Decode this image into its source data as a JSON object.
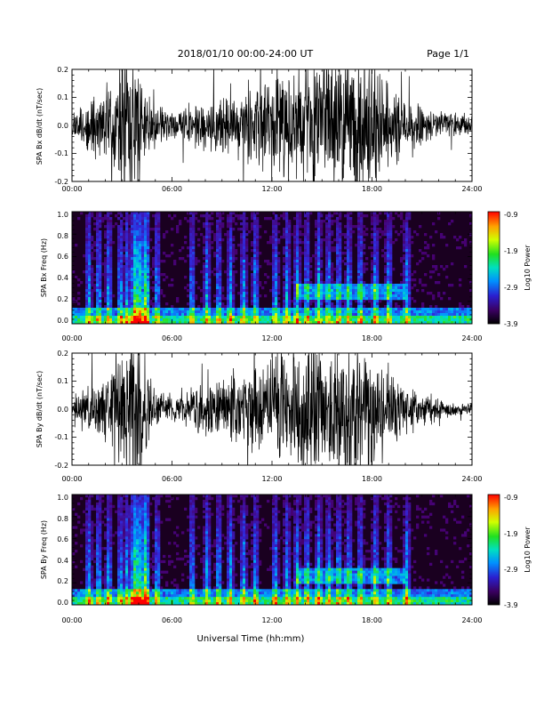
{
  "header": {
    "title": "2018/01/10  00:00-24:00 UT",
    "page": "Page 1/1"
  },
  "footer": {
    "xlabel": "Universal Time (hh:mm)"
  },
  "colors": {
    "trace": "#000000",
    "spectrogram_background": "#1a0020"
  },
  "chart_data": [
    {
      "type": "line",
      "ylabel": "SPA Bx dB/dt (nT/sec)",
      "xticks": [
        "00:00",
        "06:00",
        "12:00",
        "18:00",
        "24:00"
      ],
      "xlim_hours": [
        0,
        24
      ],
      "yticks": [
        "0.2",
        "0.1",
        "0.0",
        "-0.1",
        "-0.2"
      ],
      "ylim": [
        -0.2,
        0.2
      ],
      "series": [
        {
          "x_hours": [
            0,
            1,
            2,
            3,
            3.5,
            4,
            4.5,
            5,
            6,
            7,
            8,
            9,
            10,
            11,
            12,
            12.5,
            13,
            14,
            14.5,
            15,
            16,
            17,
            17.5,
            18,
            19,
            20,
            21,
            22,
            23,
            24
          ],
          "amplitude": [
            0.03,
            0.08,
            0.09,
            0.2,
            0.2,
            0.2,
            0.11,
            0.06,
            0.04,
            0.05,
            0.07,
            0.08,
            0.09,
            0.12,
            0.14,
            0.18,
            0.12,
            0.2,
            0.2,
            0.2,
            0.2,
            0.2,
            0.2,
            0.18,
            0.12,
            0.08,
            0.06,
            0.04,
            0.04,
            0.03
          ]
        }
      ]
    },
    {
      "type": "heatmap",
      "ylabel": "SPA Bx Freq (Hz)",
      "xticks": [
        "00:00",
        "06:00",
        "12:00",
        "18:00",
        "24:00"
      ],
      "xlim_hours": [
        0,
        24
      ],
      "yticks": [
        "1.0",
        "0.8",
        "0.6",
        "0.4",
        "0.2",
        "0.0"
      ],
      "ylim": [
        0,
        1.0
      ],
      "colorbar": {
        "label": "Log10 Power",
        "ticks": [
          "-0.9",
          "-1.9",
          "-2.9",
          "-3.9"
        ],
        "range": [
          -3.9,
          -0.9
        ]
      },
      "bursts_hours": [
        1.0,
        1.6,
        2.2,
        2.9,
        3.3,
        3.8,
        4.0,
        4.4,
        5.1,
        7.2,
        8.1,
        8.8,
        9.5,
        10.3,
        11.0,
        12.2,
        12.9,
        13.5,
        14.1,
        14.8,
        15.4,
        16.0,
        16.6,
        17.3,
        18.2,
        19.0,
        20.1
      ],
      "band_hours": [
        13.5,
        20.0
      ],
      "band_freq_hz": 0.28
    },
    {
      "type": "line",
      "ylabel": "SPA By dB/dt (nT/sec)",
      "xticks": [
        "00:00",
        "06:00",
        "12:00",
        "18:00",
        "24:00"
      ],
      "xlim_hours": [
        0,
        24
      ],
      "yticks": [
        "0.2",
        "0.1",
        "0.0",
        "-0.1",
        "-0.2"
      ],
      "ylim": [
        -0.2,
        0.2
      ],
      "series": [
        {
          "x_hours": [
            0,
            1,
            2,
            3,
            3.5,
            4,
            4.5,
            5,
            6,
            7,
            8,
            9,
            10,
            11,
            12,
            12.5,
            13,
            14,
            14.5,
            15,
            16,
            17,
            17.5,
            18,
            19,
            20,
            21,
            22,
            23,
            24
          ],
          "amplitude": [
            0.02,
            0.07,
            0.09,
            0.2,
            0.2,
            0.2,
            0.12,
            0.05,
            0.04,
            0.05,
            0.08,
            0.09,
            0.1,
            0.13,
            0.15,
            0.2,
            0.13,
            0.2,
            0.2,
            0.2,
            0.2,
            0.2,
            0.2,
            0.18,
            0.12,
            0.07,
            0.05,
            0.03,
            0.02,
            0.02
          ]
        }
      ]
    },
    {
      "type": "heatmap",
      "ylabel": "SPA By Freq (Hz)",
      "xticks": [
        "00:00",
        "06:00",
        "12:00",
        "18:00",
        "24:00"
      ],
      "xlim_hours": [
        0,
        24
      ],
      "yticks": [
        "1.0",
        "0.8",
        "0.6",
        "0.4",
        "0.2",
        "0.0"
      ],
      "ylim": [
        0,
        1.0
      ],
      "colorbar": {
        "label": "Log10 Power",
        "ticks": [
          "-0.9",
          "-1.9",
          "-2.9",
          "-3.9"
        ],
        "range": [
          -3.9,
          -0.9
        ]
      },
      "bursts_hours": [
        1.0,
        1.6,
        2.2,
        2.9,
        3.3,
        3.8,
        4.0,
        4.4,
        5.1,
        7.2,
        8.1,
        8.8,
        9.5,
        10.3,
        11.0,
        12.2,
        12.9,
        13.5,
        14.1,
        14.8,
        15.4,
        16.0,
        16.6,
        17.3,
        18.2,
        19.0,
        20.1
      ],
      "band_hours": [
        13.5,
        20.0
      ],
      "band_freq_hz": 0.26
    }
  ]
}
